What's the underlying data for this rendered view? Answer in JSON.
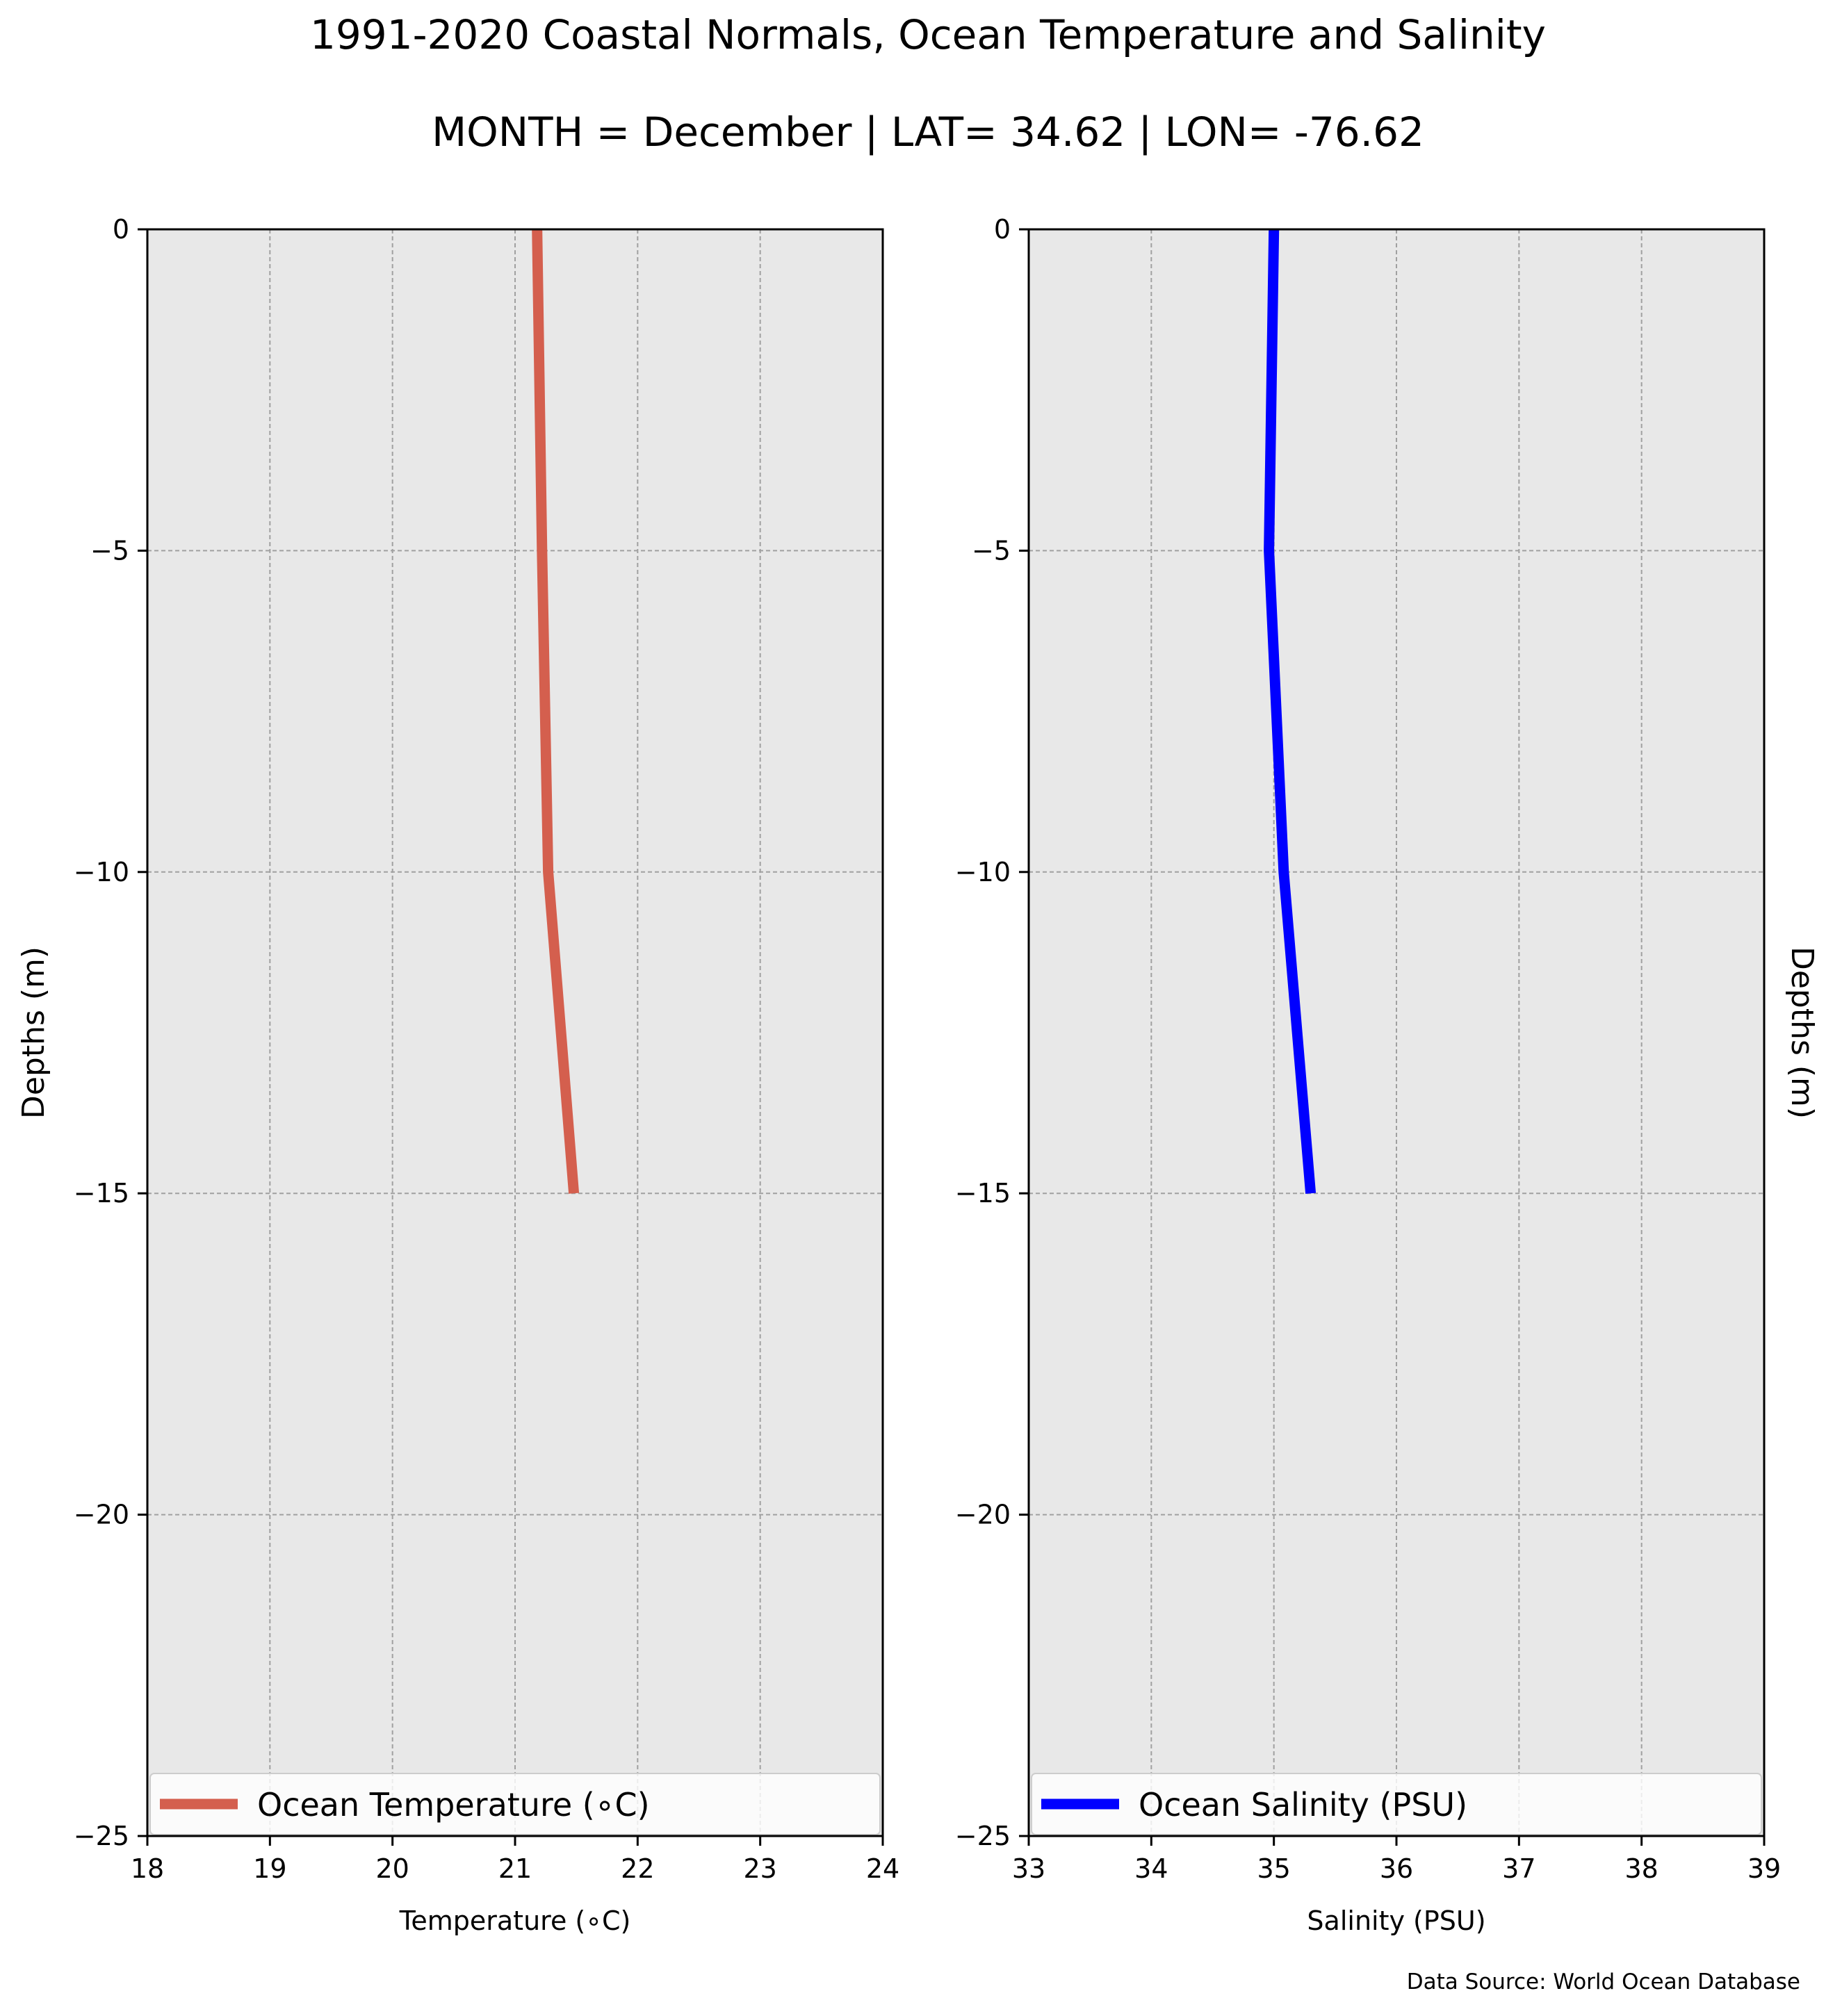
{
  "figure": {
    "title": "1991-2020 Coastal Normals, Ocean Temperature and Salinity",
    "subtitle": "MONTH = December | LAT= 34.62 | LON= -76.62",
    "source_note": "Data Source: World Ocean Database"
  },
  "chart_data": [
    {
      "type": "line",
      "xlabel": "Temperature (∘C)",
      "ylabel": "Depths (m)",
      "xlim": [
        18,
        24
      ],
      "ylim": [
        -25,
        0
      ],
      "xticks": [
        "18",
        "19",
        "20",
        "21",
        "22",
        "23",
        "24"
      ],
      "yticks": [
        "0",
        "−5",
        "−10",
        "−15",
        "−20",
        "−25"
      ],
      "grid": true,
      "legend_position": "bottom",
      "series": [
        {
          "name": "Ocean Temperature (∘C)",
          "color": "#d45f4e",
          "x": [
            21.18,
            21.22,
            21.27,
            21.48
          ],
          "y": [
            0,
            -5,
            -10,
            -15
          ]
        }
      ]
    },
    {
      "type": "line",
      "xlabel": "Salinity (PSU)",
      "ylabel": "Depths (m)",
      "xlim": [
        33,
        39
      ],
      "ylim": [
        -25,
        0
      ],
      "xticks": [
        "33",
        "34",
        "35",
        "36",
        "37",
        "38",
        "39"
      ],
      "yticks": [
        "0",
        "−5",
        "−10",
        "−15",
        "−20",
        "−25"
      ],
      "grid": true,
      "legend_position": "bottom",
      "series": [
        {
          "name": "Ocean Salinity (PSU)",
          "color": "#0000ff",
          "x": [
            35.0,
            34.96,
            35.08,
            35.3
          ],
          "y": [
            0,
            -5,
            -10,
            -15
          ]
        }
      ]
    }
  ]
}
